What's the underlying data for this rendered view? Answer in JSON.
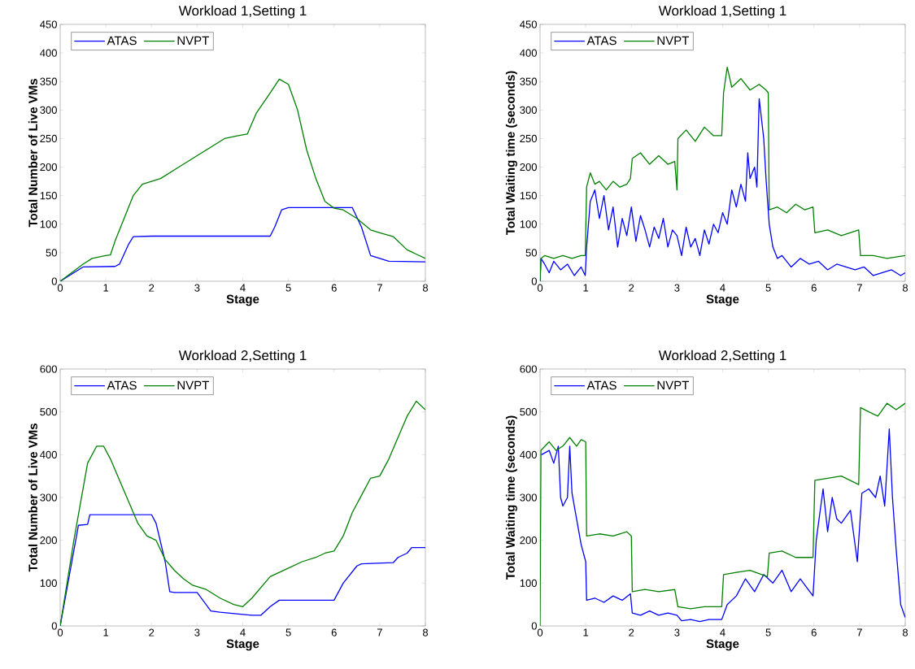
{
  "chart_data": [
    {
      "type": "line",
      "title": "Workload 1,Setting 1",
      "xlabel": "Stage",
      "ylabel": "Total Number of Live VMs",
      "xlim": [
        0,
        8
      ],
      "ylim": [
        0,
        450
      ],
      "xticks": [
        0,
        1,
        2,
        3,
        4,
        5,
        6,
        7,
        8
      ],
      "yticks": [
        0,
        50,
        100,
        150,
        200,
        250,
        300,
        350,
        400,
        450
      ],
      "legend": "top left",
      "series": [
        {
          "name": "ATAS",
          "color": "#0000ff",
          "x": [
            0,
            0.5,
            1.2,
            1.3,
            1.5,
            1.6,
            2,
            4.6,
            4.7,
            4.85,
            5,
            6.4,
            6.6,
            6.8,
            7,
            7.2,
            8
          ],
          "values": [
            0,
            25,
            26,
            30,
            65,
            78,
            79,
            79,
            95,
            125,
            129,
            129,
            95,
            45,
            40,
            35,
            34
          ]
        },
        {
          "name": "NVPT",
          "color": "#008000",
          "x": [
            0,
            0.5,
            0.7,
            1,
            1.1,
            1.2,
            1.4,
            1.6,
            1.8,
            2,
            2.2,
            2.5,
            2.8,
            3,
            3.3,
            3.6,
            3.9,
            4.1,
            4.3,
            4.6,
            4.8,
            5,
            5.2,
            5.4,
            5.6,
            5.8,
            6,
            6.2,
            6.5,
            6.8,
            7,
            7.3,
            7.6,
            8
          ],
          "values": [
            0,
            30,
            40,
            45,
            46,
            70,
            110,
            150,
            170,
            175,
            180,
            195,
            210,
            220,
            235,
            250,
            255,
            258,
            295,
            330,
            354,
            345,
            300,
            230,
            180,
            140,
            128,
            125,
            110,
            90,
            85,
            78,
            55,
            40
          ]
        }
      ]
    },
    {
      "type": "line",
      "title": "Workload 1,Setting 1",
      "xlabel": "Stage",
      "ylabel": "Total Waiting time (seconds)",
      "xlim": [
        0,
        8
      ],
      "ylim": [
        0,
        450
      ],
      "xticks": [
        0,
        1,
        2,
        3,
        4,
        5,
        6,
        7,
        8
      ],
      "yticks": [
        0,
        50,
        100,
        150,
        200,
        250,
        300,
        350,
        400,
        450
      ],
      "legend": "top left",
      "series": [
        {
          "name": "ATAS",
          "color": "#0000ff",
          "x": [
            0,
            0.02,
            0.1,
            0.2,
            0.3,
            0.45,
            0.6,
            0.75,
            0.9,
            0.99,
            1.02,
            1.1,
            1.2,
            1.3,
            1.4,
            1.5,
            1.6,
            1.7,
            1.8,
            1.9,
            2.0,
            2.1,
            2.2,
            2.3,
            2.4,
            2.5,
            2.6,
            2.7,
            2.8,
            2.9,
            3.0,
            3.1,
            3.2,
            3.3,
            3.4,
            3.5,
            3.6,
            3.7,
            3.8,
            3.9,
            4.0,
            4.1,
            4.2,
            4.3,
            4.4,
            4.5,
            4.55,
            4.6,
            4.7,
            4.75,
            4.8,
            4.9,
            4.95,
            5.02,
            5.1,
            5.2,
            5.3,
            5.5,
            5.7,
            5.9,
            6.1,
            6.3,
            6.5,
            6.7,
            6.9,
            7.1,
            7.3,
            7.5,
            7.7,
            7.9,
            8
          ],
          "values": [
            0,
            40,
            30,
            15,
            35,
            20,
            30,
            10,
            25,
            10,
            60,
            140,
            160,
            110,
            150,
            90,
            130,
            60,
            110,
            80,
            130,
            70,
            115,
            90,
            60,
            95,
            75,
            110,
            60,
            90,
            80,
            45,
            95,
            60,
            75,
            45,
            90,
            65,
            100,
            85,
            120,
            100,
            160,
            130,
            170,
            140,
            225,
            180,
            200,
            165,
            320,
            250,
            180,
            100,
            60,
            40,
            45,
            25,
            40,
            30,
            35,
            20,
            30,
            25,
            20,
            25,
            10,
            15,
            20,
            10,
            15
          ]
        },
        {
          "name": "NVPT",
          "color": "#008000",
          "x": [
            0,
            0.02,
            0.1,
            0.3,
            0.5,
            0.7,
            0.9,
            0.99,
            1.02,
            1.1,
            1.2,
            1.3,
            1.45,
            1.6,
            1.75,
            1.9,
            1.98,
            2.02,
            2.2,
            2.4,
            2.6,
            2.8,
            2.95,
            3.0,
            3.02,
            3.2,
            3.4,
            3.6,
            3.8,
            3.98,
            4.02,
            4.1,
            4.2,
            4.4,
            4.6,
            4.8,
            4.95,
            5.0,
            5.02,
            5.2,
            5.4,
            5.6,
            5.8,
            5.98,
            6.02,
            6.3,
            6.6,
            6.98,
            7.02,
            7.3,
            7.6,
            8
          ],
          "values": [
            0,
            40,
            45,
            40,
            45,
            40,
            45,
            45,
            165,
            190,
            170,
            175,
            160,
            175,
            165,
            170,
            180,
            215,
            225,
            205,
            220,
            205,
            210,
            160,
            250,
            265,
            245,
            270,
            255,
            255,
            330,
            375,
            340,
            355,
            335,
            345,
            335,
            330,
            125,
            130,
            120,
            135,
            125,
            130,
            85,
            90,
            80,
            90,
            45,
            45,
            40,
            45
          ]
        }
      ]
    },
    {
      "type": "line",
      "title": "Workload 2,Setting 1",
      "xlabel": "Stage",
      "ylabel": "Total Number of Live VMs",
      "xlim": [
        0,
        8
      ],
      "ylim": [
        0,
        600
      ],
      "xticks": [
        0,
        1,
        2,
        3,
        4,
        5,
        6,
        7,
        8
      ],
      "yticks": [
        0,
        100,
        200,
        300,
        400,
        500,
        600
      ],
      "legend": "top left",
      "series": [
        {
          "name": "ATAS",
          "color": "#0000ff",
          "x": [
            0,
            0.4,
            0.6,
            0.65,
            2,
            2.1,
            2.3,
            2.4,
            2.5,
            3,
            3.3,
            3.5,
            4,
            4.2,
            4.4,
            4.6,
            4.8,
            6,
            6.2,
            6.5,
            6.6,
            7.3,
            7.4,
            7.6,
            7.7,
            8
          ],
          "values": [
            0,
            235,
            237,
            260,
            260,
            240,
            150,
            80,
            78,
            78,
            35,
            32,
            27,
            25,
            25,
            45,
            60,
            60,
            100,
            140,
            145,
            148,
            160,
            170,
            183,
            183
          ]
        },
        {
          "name": "NVPT",
          "color": "#008000",
          "x": [
            0,
            0.3,
            0.6,
            0.8,
            0.95,
            1.1,
            1.3,
            1.5,
            1.7,
            1.9,
            2.1,
            2.3,
            2.5,
            2.7,
            2.9,
            3.2,
            3.5,
            3.8,
            4,
            4.2,
            4.4,
            4.6,
            4.8,
            5,
            5.3,
            5.6,
            5.8,
            6,
            6.2,
            6.4,
            6.6,
            6.8,
            7,
            7.2,
            7.4,
            7.6,
            7.8,
            8
          ],
          "values": [
            0,
            200,
            380,
            420,
            420,
            390,
            340,
            290,
            240,
            210,
            200,
            155,
            130,
            110,
            95,
            85,
            65,
            50,
            45,
            65,
            90,
            115,
            125,
            135,
            150,
            160,
            170,
            175,
            210,
            265,
            305,
            345,
            350,
            390,
            440,
            490,
            525,
            505
          ]
        }
      ]
    },
    {
      "type": "line",
      "title": "Workload 2,Setting 1",
      "xlabel": "Stage",
      "ylabel": "Total Waiting time (seconds)",
      "xlim": [
        0,
        8
      ],
      "ylim": [
        0,
        600
      ],
      "xticks": [
        0,
        1,
        2,
        3,
        4,
        5,
        6,
        7,
        8
      ],
      "yticks": [
        0,
        100,
        200,
        300,
        400,
        500,
        600
      ],
      "legend": "top left",
      "series": [
        {
          "name": "ATAS",
          "color": "#0000ff",
          "x": [
            0.03,
            0.2,
            0.3,
            0.4,
            0.45,
            0.5,
            0.6,
            0.65,
            0.7,
            0.8,
            0.9,
            1.0,
            1.02,
            1.2,
            1.4,
            1.6,
            1.8,
            1.98,
            2.02,
            2.2,
            2.4,
            2.6,
            2.8,
            3.0,
            3.1,
            3.3,
            3.5,
            3.7,
            3.98,
            4.1,
            4.3,
            4.5,
            4.7,
            4.9,
            5.1,
            5.3,
            5.5,
            5.7,
            5.98,
            6.05,
            6.2,
            6.3,
            6.4,
            6.5,
            6.6,
            6.8,
            6.95,
            7.05,
            7.2,
            7.35,
            7.45,
            7.55,
            7.65,
            7.72,
            7.8,
            7.9,
            8
          ],
          "values": [
            400,
            410,
            380,
            420,
            300,
            280,
            300,
            420,
            310,
            250,
            190,
            150,
            60,
            65,
            55,
            70,
            60,
            75,
            30,
            25,
            35,
            25,
            30,
            25,
            12,
            15,
            10,
            15,
            15,
            50,
            70,
            110,
            80,
            120,
            100,
            130,
            80,
            110,
            70,
            200,
            320,
            220,
            300,
            250,
            240,
            270,
            150,
            310,
            320,
            300,
            350,
            280,
            460,
            300,
            180,
            50,
            20
          ]
        },
        {
          "name": "NVPT",
          "color": "#008000",
          "x": [
            0,
            0.02,
            0.2,
            0.35,
            0.5,
            0.65,
            0.8,
            0.9,
            1.0,
            1.02,
            1.3,
            1.6,
            1.9,
            2.0,
            2.02,
            2.3,
            2.6,
            2.95,
            3.02,
            3.3,
            3.6,
            3.98,
            4.02,
            4.3,
            4.6,
            4.98,
            5.02,
            5.3,
            5.6,
            5.98,
            6.02,
            6.3,
            6.6,
            6.98,
            7.02,
            7.2,
            7.4,
            7.6,
            7.8,
            8
          ],
          "values": [
            0,
            410,
            430,
            410,
            420,
            440,
            420,
            435,
            430,
            210,
            215,
            210,
            220,
            210,
            80,
            85,
            80,
            85,
            45,
            40,
            45,
            45,
            120,
            125,
            130,
            115,
            170,
            175,
            160,
            160,
            340,
            345,
            350,
            330,
            510,
            500,
            490,
            520,
            505,
            520
          ]
        }
      ]
    }
  ]
}
